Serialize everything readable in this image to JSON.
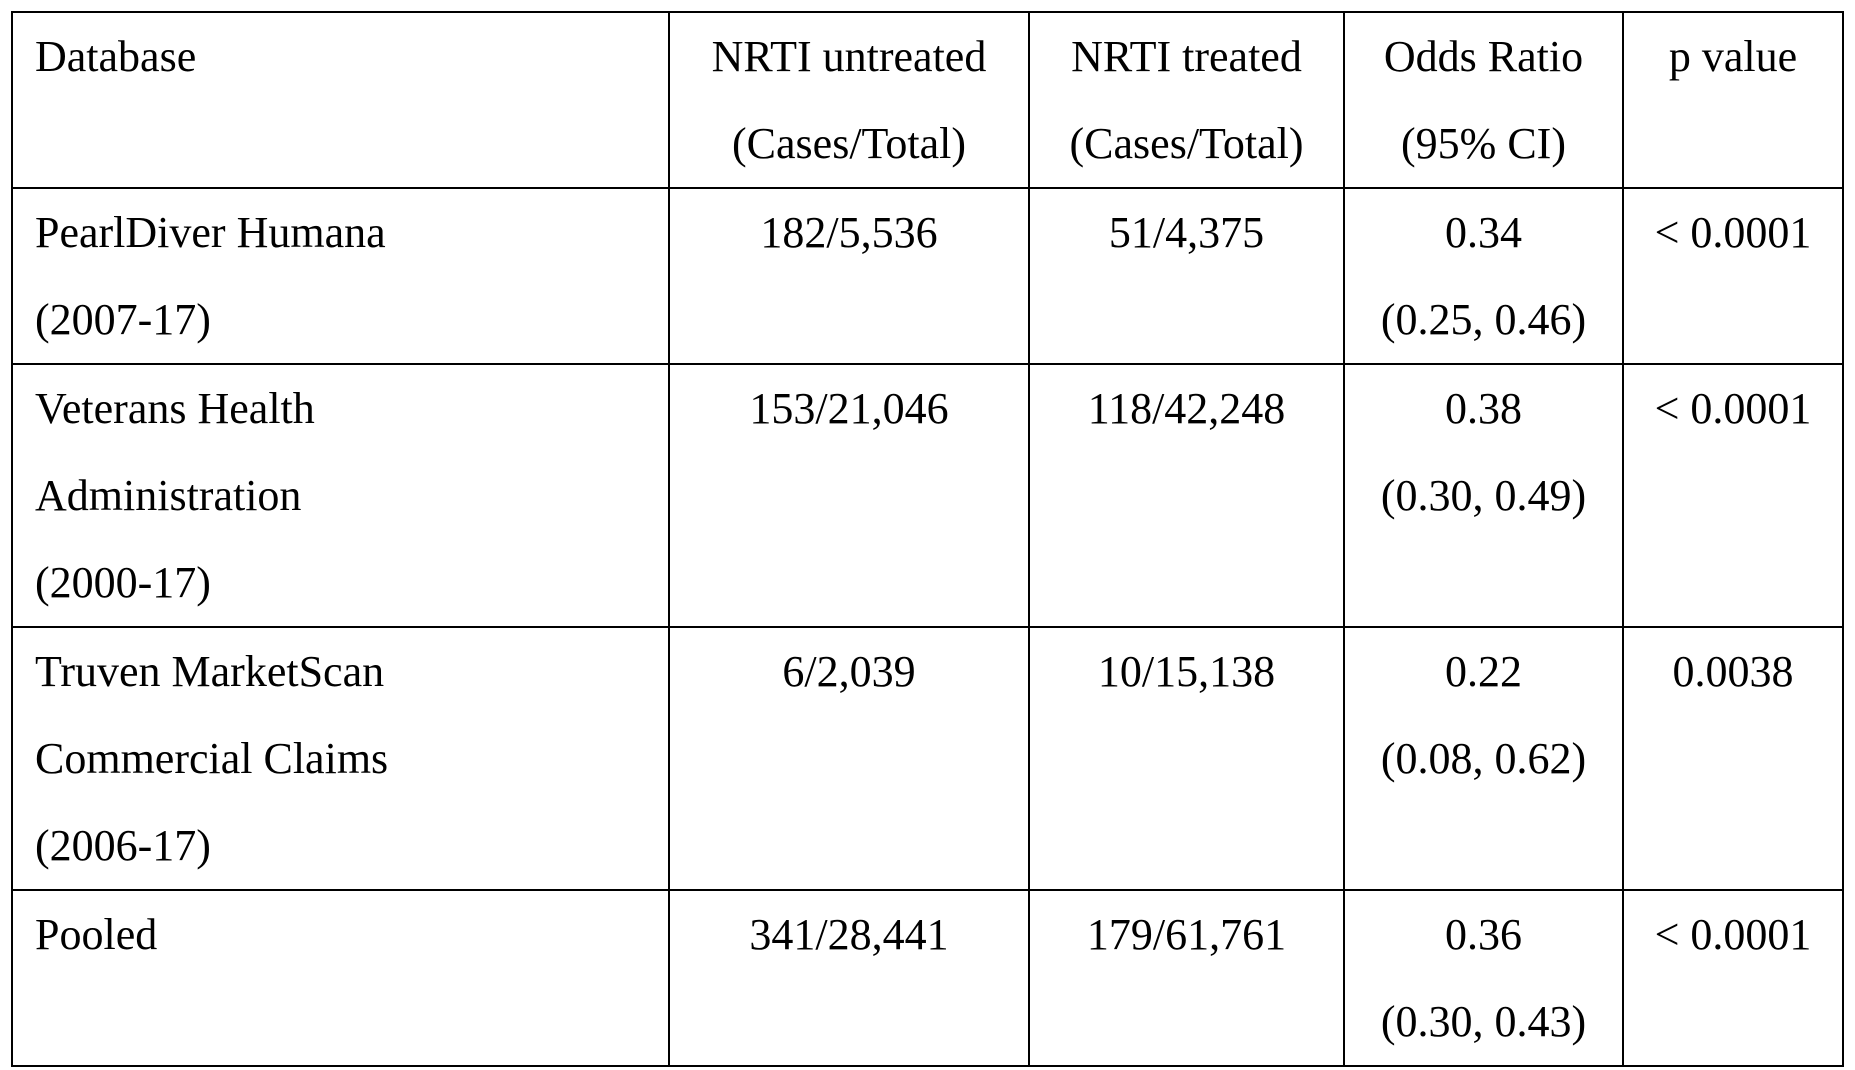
{
  "table": {
    "header": {
      "database": "Database",
      "untreated_line1": "NRTI untreated",
      "untreated_line2": "(Cases/Total)",
      "treated_line1": "NRTI treated",
      "treated_line2": "(Cases/Total)",
      "or_line1": "Odds Ratio",
      "or_line2": "(95% CI)",
      "p": "p value"
    },
    "rows": [
      {
        "db_lines": [
          "PearlDiver Humana",
          "(2007-17)"
        ],
        "untreated": "182/5,536",
        "treated": "51/4,375",
        "or": "0.34",
        "ci": "(0.25, 0.46)",
        "p": "< 0.0001"
      },
      {
        "db_lines": [
          "Veterans Health",
          "Administration",
          "(2000-17)"
        ],
        "untreated": "153/21,046",
        "treated": "118/42,248",
        "or": "0.38",
        "ci": "(0.30, 0.49)",
        "p": "< 0.0001"
      },
      {
        "db_lines": [
          "Truven MarketScan",
          "Commercial Claims",
          "(2006-17)"
        ],
        "untreated": "6/2,039",
        "treated": "10/15,138",
        "or": "0.22",
        "ci": "(0.08, 0.62)",
        "p": "0.0038"
      },
      {
        "db_lines": [
          "Pooled"
        ],
        "untreated": "341/28,441",
        "treated": "179/61,761",
        "or": "0.36",
        "ci": "(0.30, 0.43)",
        "p": "< 0.0001"
      }
    ]
  }
}
